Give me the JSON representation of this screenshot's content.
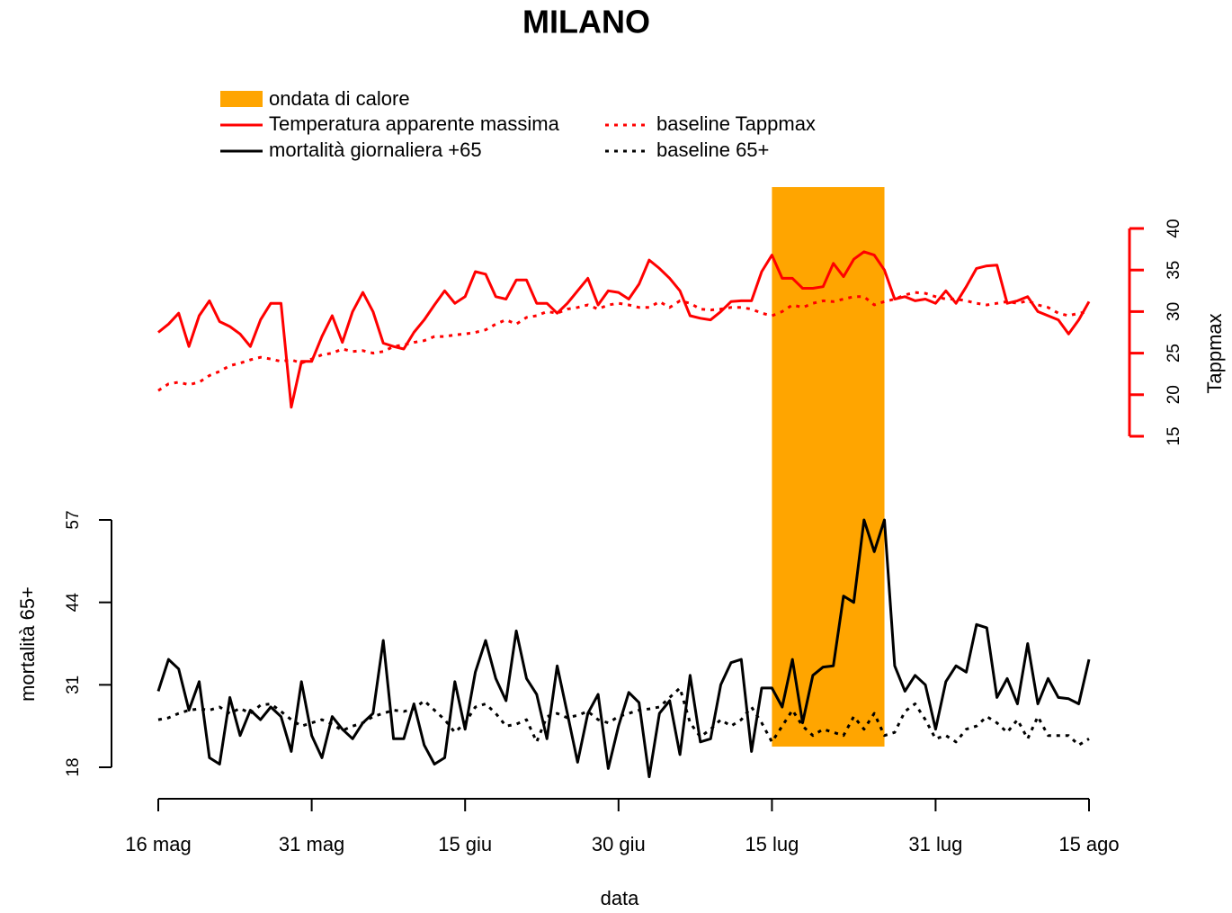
{
  "chart_data": {
    "type": "line",
    "title": "MILANO",
    "xlabel": "data",
    "ylabel": "mortalità 65+",
    "y2label": "Tappmax",
    "x": [
      "16 mag",
      "17 mag",
      "18 mag",
      "19 mag",
      "20 mag",
      "21 mag",
      "22 mag",
      "23 mag",
      "24 mag",
      "25 mag",
      "26 mag",
      "27 mag",
      "28 mag",
      "29 mag",
      "30 mag",
      "31 mag",
      "1 giu",
      "2 giu",
      "3 giu",
      "4 giu",
      "5 giu",
      "6 giu",
      "7 giu",
      "8 giu",
      "9 giu",
      "10 giu",
      "11 giu",
      "12 giu",
      "13 giu",
      "14 giu",
      "15 giu",
      "16 giu",
      "17 giu",
      "18 giu",
      "19 giu",
      "20 giu",
      "21 giu",
      "22 giu",
      "23 giu",
      "24 giu",
      "25 giu",
      "26 giu",
      "27 giu",
      "28 giu",
      "29 giu",
      "30 giu",
      "1 lug",
      "2 lug",
      "3 lug",
      "4 lug",
      "5 lug",
      "6 lug",
      "7 lug",
      "8 lug",
      "9 lug",
      "10 lug",
      "11 lug",
      "12 lug",
      "13 lug",
      "14 lug",
      "15 lug",
      "16 lug",
      "17 lug",
      "18 lug",
      "19 lug",
      "20 lug",
      "21 lug",
      "22 lug",
      "23 lug",
      "24 lug",
      "25 lug",
      "26 lug",
      "27 lug",
      "28 lug",
      "29 lug",
      "30 lug",
      "31 lug",
      "1 ago",
      "2 ago",
      "3 ago",
      "4 ago",
      "5 ago",
      "6 ago",
      "7 ago",
      "8 ago",
      "9 ago",
      "10 ago",
      "11 ago",
      "12 ago",
      "13 ago",
      "14 ago",
      "15 ago"
    ],
    "xticks": [
      "16 mag",
      "31 mag",
      "15 giu",
      "30 giu",
      "15 lug",
      "31 lug",
      "15 ago"
    ],
    "ylim": [
      18,
      57
    ],
    "yticks": [
      18,
      31,
      44,
      57
    ],
    "y2lim": [
      15,
      40
    ],
    "y2ticks": [
      15,
      20,
      25,
      30,
      35,
      40
    ],
    "highlight": {
      "label": "ondata di calore",
      "start": "15 lug",
      "end": "26 lug",
      "color": "#ffa500"
    },
    "series": [
      {
        "name": "Temperatura apparente massima",
        "color": "#ff0000",
        "axis": "y2",
        "style": "solid",
        "values": [
          27.5,
          28.5,
          29.8,
          25.8,
          29.5,
          31.3,
          28.8,
          28.2,
          27.3,
          25.8,
          29,
          31,
          31,
          18.5,
          24,
          24,
          27,
          29.5,
          26.3,
          30,
          32.3,
          30,
          26.2,
          25.8,
          25.5,
          27.5,
          29,
          30.8,
          32.5,
          31,
          31.8,
          34.8,
          34.5,
          31.8,
          31.5,
          33.8,
          33.8,
          31,
          31,
          29.8,
          31,
          32.5,
          34,
          30.8,
          32.5,
          32.3,
          31.5,
          33.3,
          36.2,
          35.2,
          34,
          32.5,
          29.5,
          29.2,
          29,
          30,
          31.2,
          31.3,
          31.3,
          34.8,
          36.8,
          34,
          34,
          32.8,
          32.8,
          33,
          35.8,
          34.2,
          36.3,
          37.2,
          36.8,
          35,
          31.5,
          31.8,
          31.3,
          31.5,
          31,
          32.5,
          31,
          33,
          35.2,
          35.5,
          35.6,
          31,
          31.3,
          31.8,
          30,
          29.5,
          29,
          27.3,
          29,
          31.2
        ]
      },
      {
        "name": "baseline Tappmax",
        "color": "#ff0000",
        "axis": "y2",
        "style": "dotted",
        "values": [
          20.5,
          21.3,
          21.5,
          21.2,
          21.5,
          22.3,
          22.8,
          23.5,
          23.8,
          24.2,
          24.5,
          24.3,
          24,
          24.2,
          23.8,
          24.3,
          24.8,
          25,
          25.5,
          25.2,
          25.3,
          25,
          25.2,
          25.8,
          26,
          26.3,
          26.5,
          27,
          27,
          27.2,
          27.3,
          27.5,
          27.8,
          28.5,
          29,
          28.5,
          29.3,
          29.5,
          30,
          29.8,
          30.3,
          30.5,
          30.8,
          30.3,
          30.8,
          31,
          30.8,
          30.5,
          30.5,
          31.2,
          30.5,
          31.3,
          31,
          30.3,
          30.2,
          30.3,
          30.5,
          30.5,
          30.3,
          29.8,
          29.5,
          30,
          30.8,
          30.5,
          31,
          31.3,
          31.2,
          31.5,
          31.8,
          31.8,
          30.8,
          31.2,
          31.5,
          32,
          32.3,
          32.2,
          31.8,
          31.5,
          31.5,
          31.3,
          31,
          30.8,
          31,
          31.2,
          31,
          31.3,
          30.8,
          30.5,
          29.8,
          29.5,
          29.8,
          30
        ]
      },
      {
        "name": "mortalità giornaliera +65",
        "color": "#000000",
        "style": "solid",
        "values": [
          30,
          35,
          33.5,
          27,
          31.5,
          19.5,
          18.5,
          29,
          23,
          27,
          25.5,
          27.5,
          26,
          20.5,
          31.5,
          23,
          19.5,
          26,
          24,
          22.5,
          25,
          26.5,
          38,
          22.5,
          22.5,
          28,
          21.5,
          18.5,
          19.5,
          31.5,
          24,
          33,
          38,
          32,
          28.5,
          39.5,
          32,
          29.5,
          22.5,
          34,
          26.5,
          18.8,
          26.5,
          29.5,
          17.8,
          24.5,
          29.8,
          28.2,
          16.5,
          26.5,
          28.5,
          20,
          32.5,
          22,
          22.5,
          31,
          34.5,
          35,
          20.5,
          30.5,
          30.5,
          27.5,
          35,
          25,
          32.5,
          33.8,
          34,
          45,
          44,
          57,
          52,
          57,
          34,
          30,
          32.5,
          31,
          24,
          31.5,
          34,
          33,
          40.5,
          40,
          29,
          32,
          28,
          37.5,
          28,
          32,
          29,
          28.8,
          28,
          35
        ]
      },
      {
        "name": "baseline 65+",
        "color": "#000000",
        "style": "dotted",
        "values": [
          25.5,
          25.8,
          26.5,
          27,
          27.2,
          27,
          27.5,
          26.5,
          27.3,
          26.5,
          27.8,
          28,
          26.8,
          25.5,
          24.5,
          25,
          25.5,
          24.8,
          23.8,
          24.5,
          25,
          26,
          26.5,
          27,
          26.8,
          27.2,
          28.5,
          27,
          25.5,
          23.5,
          25,
          27.5,
          28,
          26.5,
          24.5,
          24.8,
          25.5,
          22,
          26,
          26.5,
          25.8,
          26.2,
          26.8,
          25.5,
          25,
          26,
          26.5,
          27,
          27.2,
          27.5,
          29,
          30.5,
          25,
          22.8,
          24,
          25.5,
          24.5,
          25.5,
          27.5,
          25,
          22,
          24.5,
          27,
          24.5,
          23,
          24,
          23.5,
          23,
          26,
          24,
          26.5,
          23,
          23.5,
          26.8,
          28,
          25.5,
          22.5,
          23,
          22,
          24,
          24.5,
          26,
          25,
          23.5,
          25.5,
          22.5,
          26,
          23,
          23,
          23,
          21.5,
          22.5
        ]
      }
    ]
  }
}
